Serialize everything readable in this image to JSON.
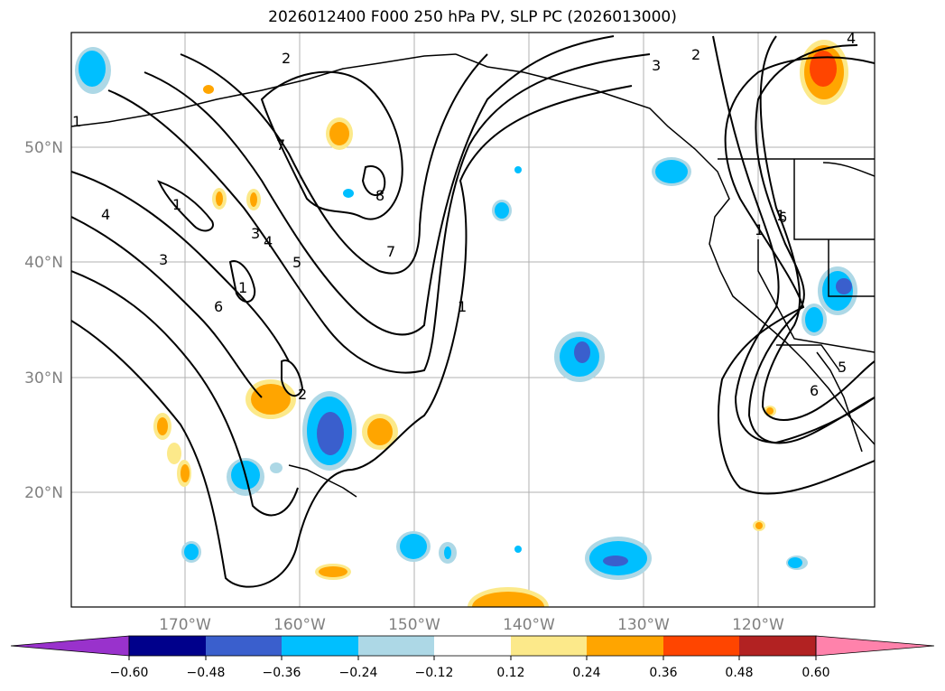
{
  "title": "2026012400 F000 250 hPa PV, SLP PC (2026013000)",
  "lat_labels": [
    "50°N",
    "40°N",
    "30°N",
    "20°N"
  ],
  "lon_labels": [
    "170°W",
    "160°W",
    "150°W",
    "140°W",
    "130°W",
    "120°W"
  ],
  "colorbar": {
    "ticks": [
      "−0.60",
      "−0.48",
      "−0.36",
      "−0.24",
      "−0.12",
      "0.12",
      "0.24",
      "0.36",
      "0.48",
      "0.60"
    ],
    "colors": [
      "#9932cc",
      "#00008b",
      "#3a5fcd",
      "#00bfff",
      "#add8e6",
      "#ffffff",
      "#fce98a",
      "#ffa500",
      "#ff4500",
      "#b22222",
      "#ff82ab"
    ]
  },
  "contour_labels": [
    "2",
    "3",
    "2",
    "7",
    "1",
    "1",
    "4",
    "1",
    "3",
    "4",
    "8",
    "3",
    "5",
    "7",
    "6",
    "1",
    "2",
    "1",
    "1",
    "6",
    "4",
    "6",
    "5"
  ],
  "colors": {
    "pv_pos_light": "#fce98a",
    "pv_pos_mid": "#ffa500",
    "pv_pos_strong": "#ff4500",
    "pv_neg_light": "#add8e6",
    "pv_neg_mid": "#00bfff",
    "pv_neg_strong": "#3a5fcd"
  }
}
